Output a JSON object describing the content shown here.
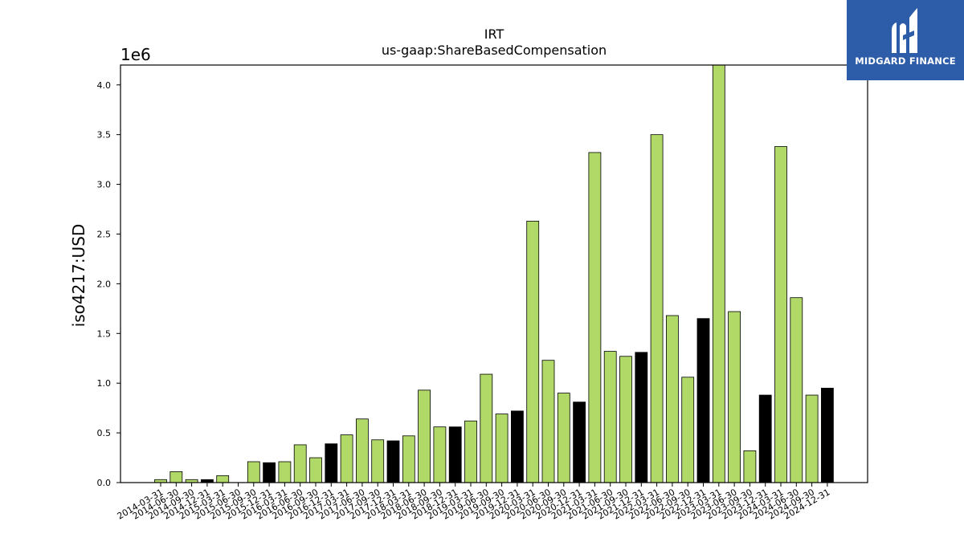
{
  "brand": {
    "name": "MIDGARD FINANCE",
    "background": "#2d5ca8"
  },
  "chart_data": {
    "type": "bar",
    "title": "IRT",
    "subtitle": "us-gaap:ShareBasedCompensation",
    "xlabel": "",
    "ylabel": "iso4217:USD",
    "y_multiplier_label": "1e6",
    "ylim": [
      0,
      4.2
    ],
    "yticks": [
      0.0,
      0.5,
      1.0,
      1.5,
      2.0,
      2.5,
      3.0,
      3.5,
      4.0
    ],
    "grid": false,
    "colors": {
      "quarter": "#b0d968",
      "year_end": "#000000",
      "edge": "#000000"
    },
    "categories": [
      "2014-03-31",
      "2014-06-30",
      "2014-09-30",
      "2014-12-31",
      "2015-03-31",
      "2015-06-30",
      "2015-09-30",
      "2015-12-31",
      "2016-03-31",
      "2016-06-30",
      "2016-09-30",
      "2016-12-31",
      "2017-03-31",
      "2017-06-30",
      "2017-09-30",
      "2017-12-31",
      "2018-03-31",
      "2018-06-30",
      "2018-09-30",
      "2018-12-31",
      "2019-03-31",
      "2019-06-30",
      "2019-09-30",
      "2019-12-31",
      "2020-03-31",
      "2020-06-30",
      "2020-09-30",
      "2020-12-31",
      "2021-03-31",
      "2021-06-30",
      "2021-09-30",
      "2021-12-31",
      "2022-03-31",
      "2022-06-30",
      "2022-09-30",
      "2022-12-31",
      "2023-03-31",
      "2023-06-30",
      "2023-09-30",
      "2023-12-31",
      "2024-03-31",
      "2024-06-30",
      "2024-09-30",
      "2024-12-31"
    ],
    "values": [
      0.03,
      0.11,
      0.03,
      0.03,
      0.07,
      0.0,
      0.21,
      0.2,
      0.21,
      0.38,
      0.25,
      0.39,
      0.48,
      0.64,
      0.43,
      0.42,
      0.47,
      0.93,
      0.56,
      0.56,
      0.62,
      1.09,
      0.69,
      0.72,
      2.63,
      1.23,
      0.9,
      0.81,
      3.32,
      1.32,
      1.27,
      1.31,
      3.5,
      1.68,
      1.06,
      1.65,
      4.2,
      1.72,
      0.32,
      0.88,
      3.38,
      1.86,
      0.88,
      0.95
    ],
    "series_kind": [
      "q",
      "q",
      "q",
      "y",
      "q",
      "q",
      "q",
      "y",
      "q",
      "q",
      "q",
      "y",
      "q",
      "q",
      "q",
      "y",
      "q",
      "q",
      "q",
      "y",
      "q",
      "q",
      "q",
      "y",
      "q",
      "q",
      "q",
      "y",
      "q",
      "q",
      "q",
      "y",
      "q",
      "q",
      "q",
      "y",
      "q",
      "q",
      "q",
      "y",
      "q",
      "q",
      "q",
      "y"
    ]
  }
}
